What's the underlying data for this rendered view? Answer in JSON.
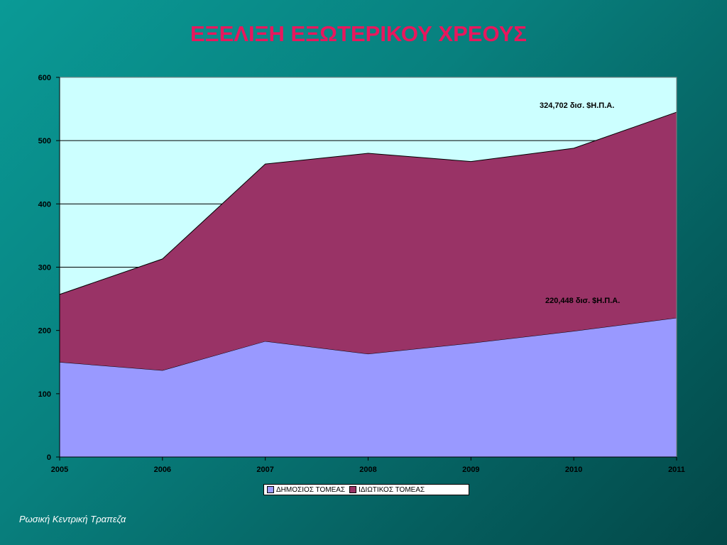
{
  "slide": {
    "title": "ΕΞΕΛΙΞΗ ΕΞΩΤΕΡΙΚΟΥ ΧΡΕΟΥΣ",
    "footer": "Ρωσική Κεντρική Τραπεζα"
  },
  "colors": {
    "title": "#e8175d",
    "plot_background": "#ccffff",
    "public_sector": "#9999ff",
    "private_sector": "#993366"
  },
  "chart_data": {
    "type": "area",
    "stacked": true,
    "title": "",
    "xlabel": "",
    "ylabel": "",
    "x": [
      "2005",
      "2006",
      "2007",
      "2008",
      "2009",
      "2010",
      "2011"
    ],
    "ylim": [
      0,
      600
    ],
    "yticks": [
      0,
      100,
      200,
      300,
      400,
      500,
      600
    ],
    "grid": "horizontal",
    "legend_position": "bottom",
    "series": [
      {
        "name": "ΔΗΜΟΣΙΟΣ ΤΟΜΕΑΣ",
        "values": [
          150,
          137,
          183,
          163,
          180,
          199,
          220
        ]
      },
      {
        "name": "ΙΔΙΩΤΙΚΟΣ ΤΟΜΕΑΣ",
        "values": [
          107,
          176,
          280,
          317,
          287,
          289,
          325
        ]
      }
    ],
    "annotations": [
      {
        "text": "324,702 δισ. $Η.Π.Α.",
        "series": "ΙΔΙΩΤΙΚΟΣ ΤΟΜΕΑΣ"
      },
      {
        "text": "220,448 δισ. $Η.Π.Α.",
        "series": "ΔΗΜΟΣΙΟΣ ΤΟΜΕΑΣ"
      }
    ]
  }
}
